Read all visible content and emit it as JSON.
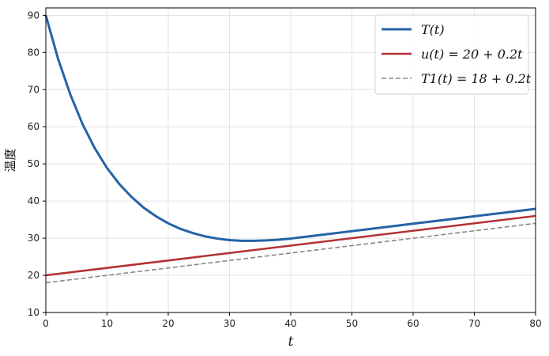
{
  "chart_data": {
    "type": "line",
    "title": "",
    "xlabel": "t",
    "ylabel": "温度",
    "xlim": [
      0,
      80
    ],
    "ylim": [
      10,
      92
    ],
    "grid": true,
    "legend_position": "top-right",
    "x_ticks": [
      0,
      10,
      20,
      30,
      40,
      50,
      60,
      70,
      80
    ],
    "y_ticks": [
      10,
      20,
      30,
      40,
      50,
      60,
      70,
      80,
      90
    ],
    "x_tick_labels": [
      "0",
      "10",
      "20",
      "30",
      "40",
      "50",
      "60",
      "70",
      "80"
    ],
    "y_tick_labels": [
      "10",
      "20",
      "30",
      "40",
      "50",
      "60",
      "70",
      "80",
      "90"
    ],
    "series": [
      {
        "name": "T(t)",
        "color": "#2463a6",
        "style": "solid",
        "x": [
          0,
          2,
          4,
          6,
          8,
          10,
          12,
          14,
          16,
          18,
          20,
          22,
          24,
          26,
          28,
          30,
          32,
          34,
          36,
          38,
          40,
          45,
          50,
          55,
          60,
          65,
          70,
          75,
          80
        ],
        "y": [
          90,
          78.3,
          68.7,
          60.7,
          54.2,
          48.9,
          44.6,
          41.1,
          38.2,
          35.9,
          34.0,
          32.5,
          31.4,
          30.5,
          29.9,
          29.5,
          29.3,
          29.3,
          29.4,
          29.6,
          29.9,
          30.9,
          31.9,
          32.9,
          33.9,
          34.9,
          35.9,
          36.9,
          37.9
        ]
      },
      {
        "name": "u(t) = 20 + 0.2t",
        "color": "#b33034",
        "style": "solid",
        "x": [
          0,
          80
        ],
        "y": [
          20,
          36
        ]
      },
      {
        "name": "T1(t) = 18 + 0.2t",
        "color": "#888888",
        "style": "dashed",
        "x": [
          0,
          80
        ],
        "y": [
          18,
          34
        ]
      }
    ]
  }
}
